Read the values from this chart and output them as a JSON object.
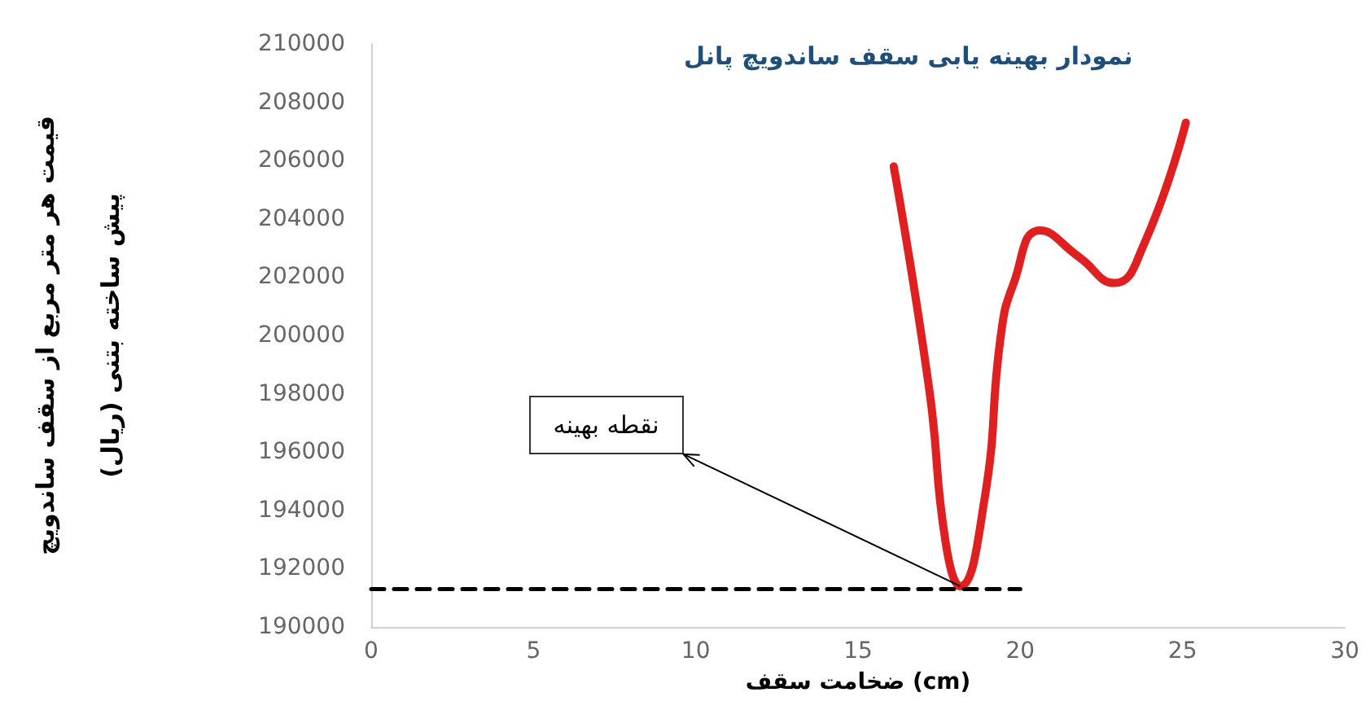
{
  "chart_data": {
    "type": "line",
    "title": "نمودار بهینه یابی سقف ساندویچ پانل",
    "xlabel": "ضخامت سقف (cm)",
    "ylabel": "قیمت هر متر مربع از سقف ساندویچ\nپیش ساخته بتنی (ریال)",
    "xlim": [
      0,
      30
    ],
    "xticks": [
      0,
      5,
      10,
      15,
      20,
      25,
      30
    ],
    "ylim": [
      190000,
      210000
    ],
    "yticks": [
      190000,
      192000,
      194000,
      196000,
      198000,
      200000,
      202000,
      204000,
      206000,
      208000,
      210000
    ],
    "grid": false,
    "marker": "none",
    "series": [
      {
        "color": "#e02020",
        "line_style": "solid",
        "x": [
          16.1,
          17.2,
          17.7,
          18.15,
          18.9,
          19.4,
          19.8,
          20.6,
          21.8,
          22.9,
          23.8,
          25.1
        ],
        "values": [
          205800,
          198100,
          192900,
          191400,
          194400,
          200000,
          201800,
          203600,
          202700,
          201800,
          203100,
          207300
        ]
      },
      {
        "color": "#000000",
        "line_style": "dashed",
        "x": [
          0,
          20
        ],
        "values": [
          191300,
          191300
        ]
      }
    ],
    "annotations": [
      {
        "text": "نقطه بهینه",
        "x": 18.15,
        "y": 191400
      }
    ]
  }
}
